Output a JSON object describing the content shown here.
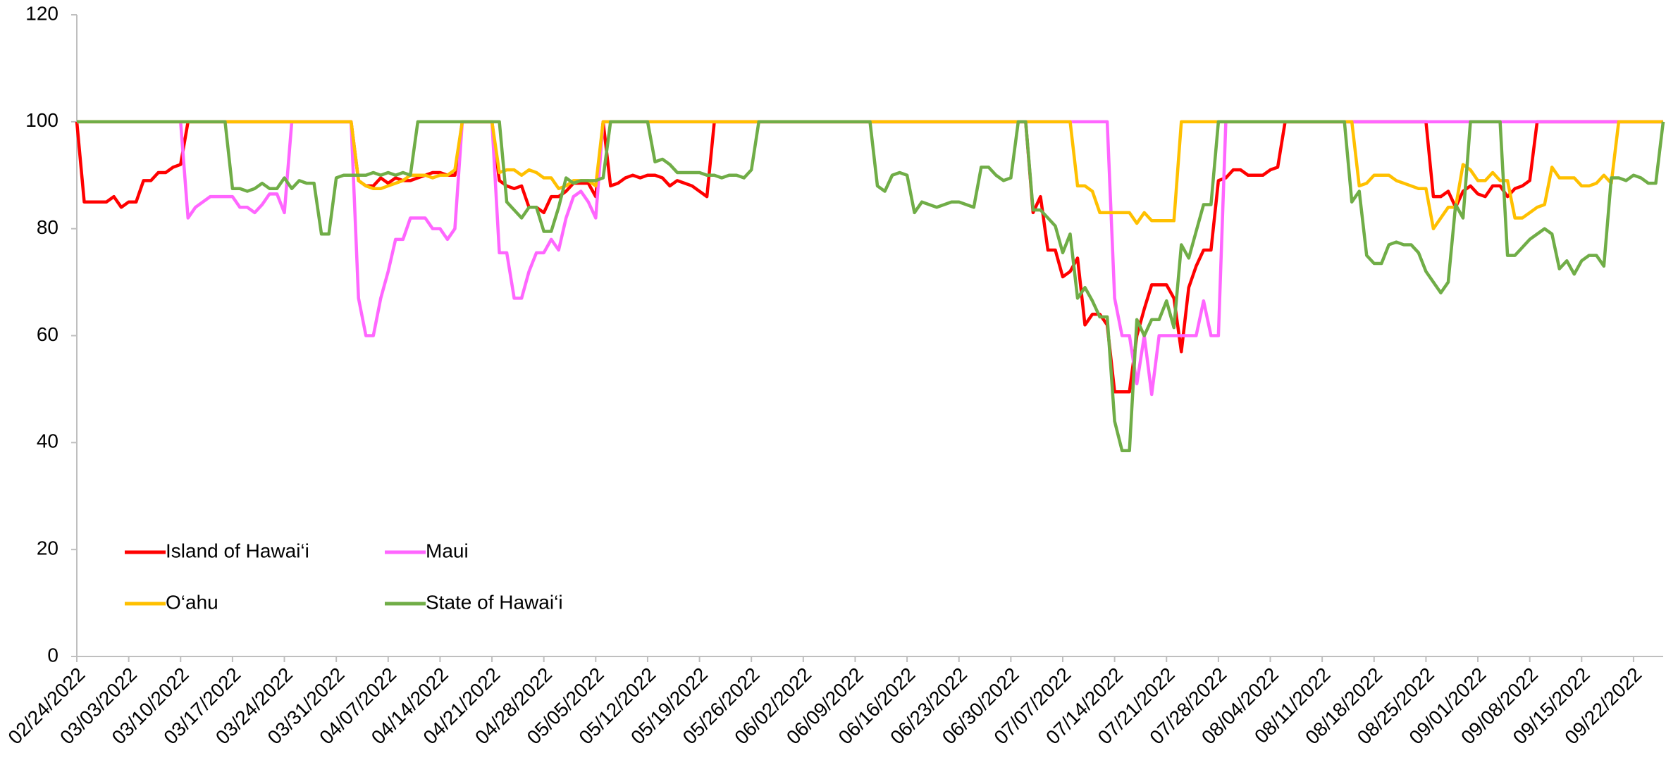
{
  "chart_data": {
    "type": "line",
    "categories": [
      "02/24/2022",
      null,
      null,
      null,
      null,
      null,
      null,
      "03/03/2022",
      null,
      null,
      null,
      null,
      null,
      null,
      "03/10/2022",
      null,
      null,
      null,
      null,
      null,
      null,
      "03/17/2022",
      null,
      null,
      null,
      null,
      null,
      null,
      "03/24/2022",
      null,
      null,
      null,
      null,
      null,
      null,
      "03/31/2022",
      null,
      null,
      null,
      null,
      null,
      null,
      "04/07/2022",
      null,
      null,
      null,
      null,
      null,
      null,
      "04/14/2022",
      null,
      null,
      null,
      null,
      null,
      null,
      "04/21/2022",
      null,
      null,
      null,
      null,
      null,
      null,
      "04/28/2022",
      null,
      null,
      null,
      null,
      null,
      null,
      "05/05/2022",
      null,
      null,
      null,
      null,
      null,
      null,
      "05/12/2022",
      null,
      null,
      null,
      null,
      null,
      null,
      "05/19/2022",
      null,
      null,
      null,
      null,
      null,
      null,
      "05/26/2022",
      null,
      null,
      null,
      null,
      null,
      null,
      "06/02/2022",
      null,
      null,
      null,
      null,
      null,
      null,
      "06/09/2022",
      null,
      null,
      null,
      null,
      null,
      null,
      "06/16/2022",
      null,
      null,
      null,
      null,
      null,
      null,
      "06/23/2022",
      null,
      null,
      null,
      null,
      null,
      null,
      "06/30/2022",
      null,
      null,
      null,
      null,
      null,
      null,
      "07/07/2022",
      null,
      null,
      null,
      null,
      null,
      null,
      "07/14/2022",
      null,
      null,
      null,
      null,
      null,
      null,
      "07/21/2022",
      null,
      null,
      null,
      null,
      null,
      null,
      "07/28/2022",
      null,
      null,
      null,
      null,
      null,
      null,
      "08/04/2022",
      null,
      null,
      null,
      null,
      null,
      null,
      "08/11/2022",
      null,
      null,
      null,
      null,
      null,
      null,
      "08/18/2022",
      null,
      null,
      null,
      null,
      null,
      null,
      "08/25/2022",
      null,
      null,
      null,
      null,
      null,
      null,
      "09/01/2022",
      null,
      null,
      null,
      null,
      null,
      null,
      "09/08/2022",
      null,
      null,
      null,
      null,
      null,
      null,
      "09/15/2022",
      null,
      null,
      null,
      null,
      null,
      null,
      "09/22/2022",
      null,
      null,
      null,
      null
    ],
    "series": [
      {
        "name": "Island of Hawai‘i",
        "color": "#ff0000",
        "values": [
          100,
          85,
          85,
          85,
          85,
          86,
          84,
          85,
          85,
          89,
          89,
          90.5,
          90.5,
          91.5,
          92,
          100,
          100,
          100,
          100,
          100,
          100,
          100,
          100,
          100,
          100,
          100,
          100,
          100,
          100,
          100,
          100,
          100,
          100,
          100,
          100,
          100,
          100,
          100,
          89,
          88,
          88,
          89.5,
          88.5,
          89.5,
          89,
          89,
          89.5,
          90,
          90.5,
          90.5,
          90,
          90,
          100,
          100,
          100,
          100,
          100,
          89,
          88,
          87.5,
          88,
          84,
          84,
          83,
          86,
          86,
          87,
          88.5,
          88.5,
          88.5,
          86,
          100,
          88,
          88.5,
          89.5,
          90,
          89.5,
          90,
          90,
          89.5,
          88,
          89,
          88.5,
          88,
          87,
          86,
          100,
          100,
          100,
          100,
          100,
          100,
          100,
          100,
          100,
          100,
          100,
          100,
          100,
          100,
          100,
          100,
          100,
          100,
          100,
          100,
          100,
          100,
          100,
          100,
          100,
          100,
          100,
          100,
          100,
          100,
          100,
          100,
          100,
          100,
          100,
          100,
          100,
          100,
          100,
          100,
          100,
          100,
          100,
          83,
          86,
          76,
          76,
          71,
          72,
          74.5,
          62,
          64,
          64,
          62,
          49.5,
          49.5,
          49.5,
          60,
          65,
          69.5,
          69.5,
          69.5,
          67,
          57,
          69,
          73,
          76,
          76,
          89,
          89.5,
          91,
          91,
          90,
          90,
          90,
          91,
          91.5,
          100,
          100,
          100,
          100,
          100,
          100,
          100,
          100,
          100,
          100,
          100,
          100,
          100,
          100,
          100,
          100,
          100,
          100,
          100,
          100,
          86,
          86,
          87,
          84,
          87,
          88,
          86.5,
          86,
          88,
          88,
          86,
          87.5,
          88,
          89,
          100,
          100,
          100,
          100,
          100,
          100,
          100,
          100,
          100,
          100,
          100,
          100,
          100,
          100,
          100,
          100,
          100,
          100
        ]
      },
      {
        "name": "Maui",
        "color": "#ff66ff",
        "values": [
          100,
          100,
          100,
          100,
          100,
          100,
          100,
          100,
          100,
          100,
          100,
          100,
          100,
          100,
          100,
          82,
          84,
          85,
          86,
          86,
          86,
          86,
          84,
          84,
          83,
          84.5,
          86.5,
          86.5,
          83,
          100,
          100,
          100,
          100,
          100,
          100,
          100,
          100,
          100,
          67,
          60,
          60,
          67,
          72,
          78,
          78,
          82,
          82,
          82,
          80,
          80,
          78,
          80,
          100,
          100,
          100,
          100,
          100,
          75.5,
          75.5,
          67,
          67,
          72,
          75.5,
          75.5,
          78,
          76,
          82,
          86,
          87,
          85,
          82,
          100,
          100,
          100,
          100,
          100,
          100,
          100,
          100,
          100,
          100,
          100,
          100,
          100,
          100,
          100,
          100,
          100,
          100,
          100,
          100,
          100,
          100,
          100,
          100,
          100,
          100,
          100,
          100,
          100,
          100,
          100,
          100,
          100,
          100,
          100,
          100,
          100,
          100,
          100,
          100,
          100,
          100,
          100,
          100,
          100,
          100,
          100,
          100,
          100,
          100,
          100,
          100,
          100,
          100,
          100,
          100,
          100,
          100,
          100,
          100,
          100,
          100,
          100,
          100,
          100,
          100,
          100,
          100,
          100,
          67,
          60,
          60,
          51,
          60,
          49,
          60,
          60,
          60,
          60,
          60,
          60,
          66.5,
          60,
          60,
          100,
          100,
          100,
          100,
          100,
          100,
          100,
          100,
          100,
          100,
          100,
          100,
          100,
          100,
          100,
          100,
          100,
          100,
          100,
          100,
          100,
          100,
          100,
          100,
          100,
          100,
          100,
          100,
          100,
          100,
          100,
          100,
          100,
          100,
          100,
          100,
          100,
          100,
          100,
          100,
          100,
          100,
          100,
          100,
          100,
          100,
          100,
          100,
          100,
          100,
          100,
          100,
          100,
          100,
          100,
          100,
          100,
          100,
          100,
          100
        ]
      },
      {
        "name": "O‘ahu",
        "color": "#ffc000",
        "values": [
          100,
          100,
          100,
          100,
          100,
          100,
          100,
          100,
          100,
          100,
          100,
          100,
          100,
          100,
          100,
          100,
          100,
          100,
          100,
          100,
          100,
          100,
          100,
          100,
          100,
          100,
          100,
          100,
          100,
          100,
          100,
          100,
          100,
          100,
          100,
          100,
          100,
          100,
          89,
          88,
          87.5,
          87.5,
          88,
          88.5,
          89,
          90,
          90,
          90,
          89.5,
          90,
          90,
          91,
          100,
          100,
          100,
          100,
          100,
          90.5,
          91,
          91,
          90,
          91,
          90.5,
          89.5,
          89.5,
          87.5,
          88,
          89,
          89,
          89,
          88,
          100,
          100,
          100,
          100,
          100,
          100,
          100,
          100,
          100,
          100,
          100,
          100,
          100,
          100,
          100,
          100,
          100,
          100,
          100,
          100,
          100,
          100,
          100,
          100,
          100,
          100,
          100,
          100,
          100,
          100,
          100,
          100,
          100,
          100,
          100,
          100,
          100,
          100,
          100,
          100,
          100,
          100,
          100,
          100,
          100,
          100,
          100,
          100,
          100,
          100,
          100,
          100,
          100,
          100,
          100,
          100,
          100,
          100,
          100,
          100,
          100,
          100,
          100,
          100,
          88,
          88,
          87,
          83,
          83,
          83,
          83,
          83,
          81,
          83,
          81.5,
          81.5,
          81.5,
          81.5,
          100,
          100,
          100,
          100,
          100,
          100,
          100,
          100,
          100,
          100,
          100,
          100,
          100,
          100,
          100,
          100,
          100,
          100,
          100,
          100,
          100,
          100,
          100,
          100,
          88,
          88.5,
          90,
          90,
          90,
          89,
          88.5,
          88,
          87.5,
          87.5,
          80,
          82,
          84,
          84,
          92,
          91,
          89,
          89,
          90.5,
          89,
          89,
          82,
          82,
          83,
          84,
          84.5,
          91.5,
          89.5,
          89.5,
          89.5,
          88,
          88,
          88.5,
          90,
          88.5,
          100,
          100,
          100,
          100,
          100,
          100,
          100
        ]
      },
      {
        "name": "State of Hawai‘i",
        "color": "#70ad47",
        "values": [
          100,
          100,
          100,
          100,
          100,
          100,
          100,
          100,
          100,
          100,
          100,
          100,
          100,
          100,
          100,
          100,
          100,
          100,
          100,
          100,
          100,
          87.5,
          87.5,
          87,
          87.5,
          88.5,
          87.5,
          87.5,
          89.5,
          87.5,
          89,
          88.5,
          88.5,
          79,
          79,
          89.5,
          90,
          90,
          90,
          90,
          90.5,
          90,
          90.5,
          90,
          90.5,
          90,
          100,
          100,
          100,
          100,
          100,
          100,
          100,
          100,
          100,
          100,
          100,
          100,
          85,
          83.5,
          82,
          84,
          84,
          79.5,
          79.5,
          84,
          89.5,
          88.5,
          89,
          89,
          89,
          89.5,
          100,
          100,
          100,
          100,
          100,
          100,
          92.5,
          93,
          92,
          90.5,
          90.5,
          90.5,
          90.5,
          90,
          90,
          89.5,
          90,
          90,
          89.5,
          91,
          100,
          100,
          100,
          100,
          100,
          100,
          100,
          100,
          100,
          100,
          100,
          100,
          100,
          100,
          100,
          100,
          88,
          87,
          90,
          90.5,
          90,
          83,
          85,
          84.5,
          84,
          84.5,
          85,
          85,
          84.5,
          84,
          91.5,
          91.5,
          90,
          89,
          89.5,
          100,
          100,
          83.5,
          83.5,
          82,
          80.5,
          75.5,
          79,
          67,
          69,
          66.5,
          63.5,
          63.5,
          44,
          38.5,
          38.5,
          63,
          60,
          63,
          63,
          66.5,
          61.5,
          77,
          74.5,
          79.5,
          84.5,
          84.5,
          100,
          100,
          100,
          100,
          100,
          100,
          100,
          100,
          100,
          100,
          100,
          100,
          100,
          100,
          100,
          100,
          100,
          100,
          85,
          87,
          75,
          73.5,
          73.5,
          77,
          77.5,
          77,
          77,
          75.5,
          72,
          70,
          68,
          70,
          84.5,
          82,
          100,
          100,
          100,
          100,
          100,
          75,
          75,
          76.5,
          78,
          79,
          80,
          79,
          72.5,
          74,
          71.5,
          74,
          75,
          75,
          73,
          89.5,
          89.5,
          89,
          90,
          89.5,
          88.5,
          88.5,
          100
        ]
      }
    ],
    "ylim": [
      0,
      120
    ],
    "yticks": [
      0,
      20,
      40,
      60,
      80,
      100,
      120
    ],
    "grid": false,
    "legend": "lower-left"
  }
}
